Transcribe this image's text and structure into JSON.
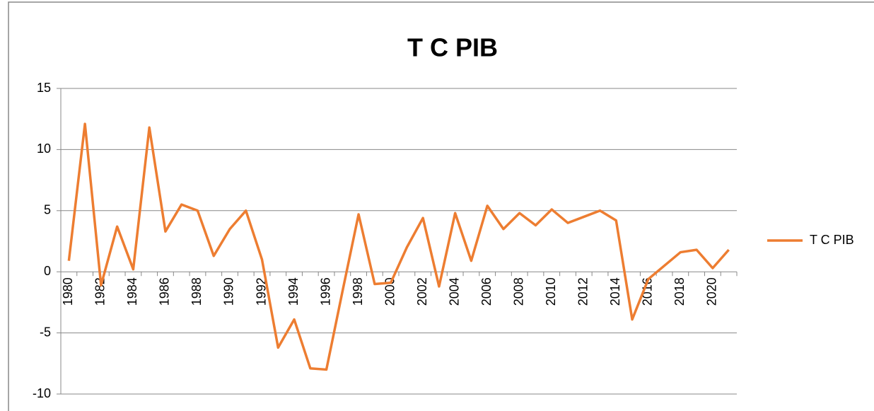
{
  "chart_data": {
    "type": "line",
    "title": "T C PIB",
    "categories": [
      "1980",
      null,
      "1982",
      null,
      "1984",
      null,
      "1986",
      null,
      "1988",
      null,
      "1990",
      null,
      "1992",
      null,
      "1994",
      null,
      "1996",
      null,
      "1998",
      null,
      "2000",
      null,
      "2002",
      null,
      "2004",
      null,
      "2006",
      null,
      "2008",
      null,
      "2010",
      null,
      "2012",
      null,
      "2014",
      null,
      "2016",
      null,
      "2018",
      null,
      "2020",
      null
    ],
    "series": [
      {
        "name": "T C PIB",
        "color": "#ed7d31",
        "values": [
          0.9,
          12.1,
          -1.1,
          3.7,
          0.2,
          11.8,
          3.3,
          5.5,
          5.0,
          1.3,
          3.5,
          5.0,
          1.0,
          -6.2,
          -3.9,
          -7.9,
          -8.0,
          -1.6,
          4.7,
          -1.0,
          -0.9,
          2.0,
          4.4,
          -1.2,
          4.8,
          0.9,
          5.4,
          3.5,
          4.8,
          3.8,
          5.1,
          4.0,
          4.5,
          5.0,
          4.2,
          -3.9,
          -0.6,
          0.5,
          1.6,
          1.8,
          0.3,
          1.8
        ]
      }
    ],
    "ylim": [
      -10,
      15
    ],
    "yticks": [
      -10,
      -5,
      0,
      5,
      10,
      15
    ],
    "grid": true,
    "legend": "right"
  }
}
